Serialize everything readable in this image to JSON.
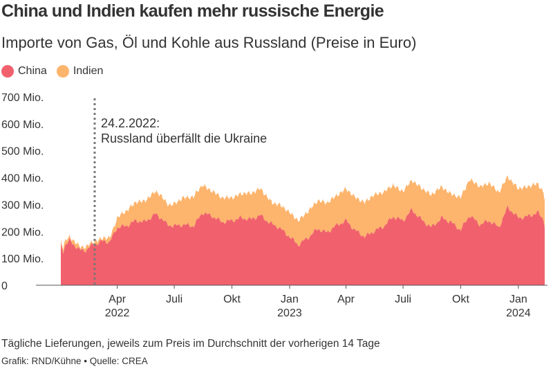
{
  "title": "China und Indien kaufen mehr russische Energie",
  "subtitle": "Importe von Gas, Öl und Kohle aus Russland (Preise in Euro)",
  "note": "Tägliche Lieferungen, jeweils zum Preis im Durchschnitt der vorherigen 14 Tage",
  "credit": "Grafik: RND/Kühne • Quelle: CREA",
  "colors": {
    "china": "#f0616d",
    "india": "#fdb46c",
    "axis": "#555555",
    "event_line": "#777777"
  },
  "chart_data": {
    "type": "area",
    "stacked": true,
    "x_start": "2022-01-01",
    "x_end": "2024-02-12",
    "ylim": [
      0,
      700
    ],
    "yticks": [
      {
        "value": 0,
        "label": "0"
      },
      {
        "value": 100,
        "label": "100 Mio."
      },
      {
        "value": 200,
        "label": "200 Mio."
      },
      {
        "value": 300,
        "label": "300 Mio."
      },
      {
        "value": 400,
        "label": "400 Mio."
      },
      {
        "value": 500,
        "label": "500 Mio."
      },
      {
        "value": 600,
        "label": "600 Mio."
      },
      {
        "value": 700,
        "label": "700 Mio."
      }
    ],
    "xticks": [
      {
        "date": "2022-04-01",
        "label": "Apr",
        "year": "2022"
      },
      {
        "date": "2022-07-01",
        "label": "Juli",
        "year": ""
      },
      {
        "date": "2022-10-01",
        "label": "Okt",
        "year": ""
      },
      {
        "date": "2023-01-01",
        "label": "Jan",
        "year": "2023"
      },
      {
        "date": "2023-04-01",
        "label": "Apr",
        "year": ""
      },
      {
        "date": "2023-07-01",
        "label": "Juli",
        "year": ""
      },
      {
        "date": "2023-10-01",
        "label": "Okt",
        "year": ""
      },
      {
        "date": "2024-01-01",
        "label": "Jan",
        "year": "2024"
      }
    ],
    "event": {
      "date": "2022-02-24",
      "label_line1": "24.2.2022:",
      "label_line2": "Russland überfällt die Ukraine"
    },
    "series": [
      {
        "name": "China",
        "dates": [
          "2022-01-01",
          "2022-01-05",
          "2022-01-08",
          "2022-01-15",
          "2022-01-22",
          "2022-02-01",
          "2022-02-10",
          "2022-02-20",
          "2022-02-28",
          "2022-03-10",
          "2022-03-20",
          "2022-04-01",
          "2022-04-15",
          "2022-05-01",
          "2022-05-15",
          "2022-06-01",
          "2022-06-10",
          "2022-06-20",
          "2022-07-01",
          "2022-07-15",
          "2022-08-01",
          "2022-08-15",
          "2022-09-01",
          "2022-09-15",
          "2022-10-01",
          "2022-10-15",
          "2022-11-01",
          "2022-11-15",
          "2022-12-01",
          "2022-12-15",
          "2023-01-01",
          "2023-01-15",
          "2023-02-01",
          "2023-02-15",
          "2023-03-01",
          "2023-03-15",
          "2023-04-01",
          "2023-04-15",
          "2023-05-01",
          "2023-05-15",
          "2023-06-01",
          "2023-06-15",
          "2023-07-01",
          "2023-07-15",
          "2023-08-01",
          "2023-08-15",
          "2023-09-01",
          "2023-09-15",
          "2023-10-01",
          "2023-10-15",
          "2023-11-01",
          "2023-11-15",
          "2023-12-01",
          "2023-12-15",
          "2024-01-01",
          "2024-01-15",
          "2024-02-01",
          "2024-02-10",
          "2024-02-12"
        ],
        "values": [
          150,
          125,
          150,
          165,
          150,
          130,
          130,
          150,
          155,
          165,
          160,
          215,
          220,
          240,
          235,
          265,
          250,
          225,
          220,
          225,
          220,
          270,
          255,
          235,
          240,
          250,
          245,
          260,
          230,
          215,
          180,
          150,
          180,
          210,
          195,
          220,
          240,
          205,
          180,
          200,
          220,
          255,
          240,
          280,
          240,
          215,
          250,
          235,
          205,
          260,
          225,
          240,
          215,
          290,
          250,
          255,
          270,
          245,
          220
        ]
      },
      {
        "name": "Indien",
        "dates": [
          "2022-01-01",
          "2022-01-15",
          "2022-02-10",
          "2022-03-01",
          "2022-03-20",
          "2022-04-10",
          "2022-05-01",
          "2022-05-20",
          "2022-06-05",
          "2022-06-25",
          "2022-07-15",
          "2022-08-05",
          "2022-08-25",
          "2022-09-15",
          "2022-10-05",
          "2022-10-25",
          "2022-11-15",
          "2022-12-05",
          "2022-12-25",
          "2023-01-15",
          "2023-02-05",
          "2023-02-25",
          "2023-03-15",
          "2023-04-05",
          "2023-04-25",
          "2023-05-15",
          "2023-06-05",
          "2023-06-25",
          "2023-07-15",
          "2023-08-05",
          "2023-08-25",
          "2023-09-15",
          "2023-10-05",
          "2023-10-25",
          "2023-11-15",
          "2023-12-01",
          "2023-12-20",
          "2024-01-10",
          "2024-01-25",
          "2024-02-12"
        ],
        "values": [
          15,
          15,
          12,
          10,
          15,
          50,
          70,
          80,
          85,
          75,
          100,
          110,
          95,
          90,
          85,
          95,
          100,
          80,
          90,
          90,
          100,
          110,
          110,
          120,
          125,
          135,
          125,
          110,
          110,
          120,
          120,
          105,
          125,
          140,
          140,
          130,
          110,
          110,
          110,
          100
        ]
      }
    ]
  }
}
